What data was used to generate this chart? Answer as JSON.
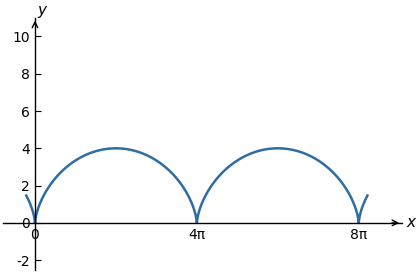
{
  "curve_color": "#2e6da4",
  "line_width": 1.8,
  "xlabel": "x",
  "ylabel": "y",
  "xlim": [
    -2.5,
    28.5
  ],
  "ylim": [
    -2.5,
    11
  ],
  "xticks": [
    0,
    12.566370614359172,
    25.132741228718345
  ],
  "xtick_labels": [
    "0",
    "4π",
    "8π"
  ],
  "yticks": [
    -2,
    0,
    2,
    4,
    6,
    8,
    10
  ],
  "r": 2,
  "t_start": -1.3,
  "t_end": 10.1,
  "n_points": 2000,
  "background_color": "#ffffff",
  "spine_color": "#000000"
}
